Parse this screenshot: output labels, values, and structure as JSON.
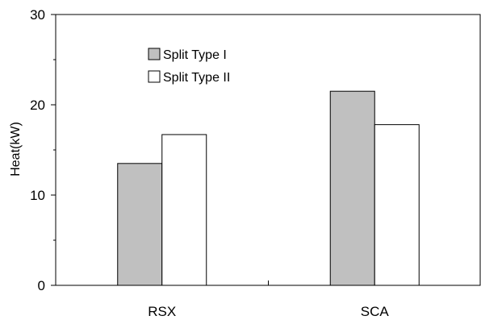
{
  "chart_data": {
    "type": "bar",
    "categories": [
      "RSX",
      "SCA"
    ],
    "series": [
      {
        "name": "Split Type I",
        "values": [
          13.5,
          21.5
        ],
        "color": "#c0c0c0"
      },
      {
        "name": "Split Type II",
        "values": [
          16.7,
          17.8
        ],
        "color": "#ffffff"
      }
    ],
    "ylabel": "Heat(kW)",
    "xlabel": "",
    "ylim": [
      0,
      30
    ],
    "yticks": [
      "0",
      "10",
      "20",
      "30"
    ],
    "grid": false,
    "legend_position": "top-left"
  }
}
